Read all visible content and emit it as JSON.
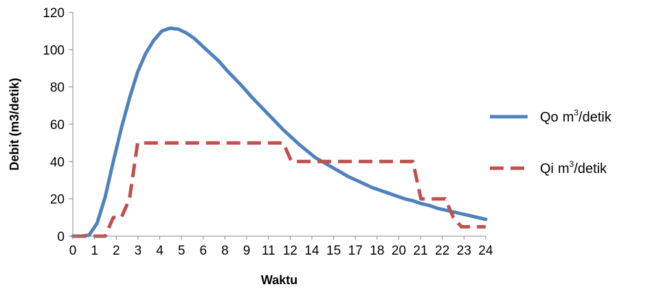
{
  "chart_data": {
    "type": "line",
    "title": "",
    "xlabel": "Waktu",
    "ylabel": "Debit (m3/detik)",
    "x_tick_labels": [
      "0",
      "1",
      "2",
      "3",
      "4",
      "5",
      "6",
      "7",
      "8",
      "9",
      "10",
      "11",
      "12",
      "13",
      "14",
      "15",
      "16",
      "17",
      "18",
      "19",
      "20",
      "21",
      "22",
      "23",
      "24"
    ],
    "x_tick_display": [
      "0",
      "1",
      "2",
      "3",
      "4",
      "5",
      "6",
      "8",
      "9",
      "11",
      "12",
      "14",
      "15",
      "17",
      "18",
      "20",
      "21",
      "22",
      "23",
      "24"
    ],
    "y_ticks": [
      "0",
      "20",
      "40",
      "60",
      "80",
      "100",
      "120"
    ],
    "ylim": [
      0,
      120
    ],
    "grid": false,
    "legend_position": "right",
    "series": [
      {
        "name": "Qo",
        "legend_unit": "m",
        "legend_sup": "3",
        "legend_suffix": "/detik",
        "color": "#4F81BD",
        "style": "solid",
        "values": [
          0,
          0,
          0.5,
          7,
          21,
          40,
          58,
          74,
          88,
          98,
          105,
          110,
          111.5,
          111,
          109,
          106,
          102,
          98,
          94,
          89,
          84.5,
          80,
          75,
          70.5,
          66,
          61.5,
          57,
          53,
          49,
          45.5,
          42,
          39.5,
          37,
          34.5,
          32,
          30,
          28,
          26,
          24.5,
          23,
          21.5,
          20,
          19,
          17.5,
          16.5,
          15,
          14,
          13,
          12,
          11,
          10,
          9
        ]
      },
      {
        "name": "Qi",
        "legend_unit": "m",
        "legend_sup": "3",
        "legend_suffix": "/detik",
        "color": "#C0504D",
        "style": "dashed",
        "values": [
          0,
          0,
          0,
          0,
          0,
          10,
          10,
          20,
          50,
          50,
          50,
          50,
          50,
          50,
          50,
          50,
          50,
          50,
          50,
          50,
          50,
          50,
          50,
          50,
          50,
          50,
          50,
          40,
          40,
          40,
          40,
          40,
          40,
          40,
          40,
          40,
          40,
          40,
          40,
          40,
          40,
          40,
          40,
          20,
          20,
          20,
          20,
          10,
          5,
          5,
          5,
          5
        ]
      }
    ]
  }
}
